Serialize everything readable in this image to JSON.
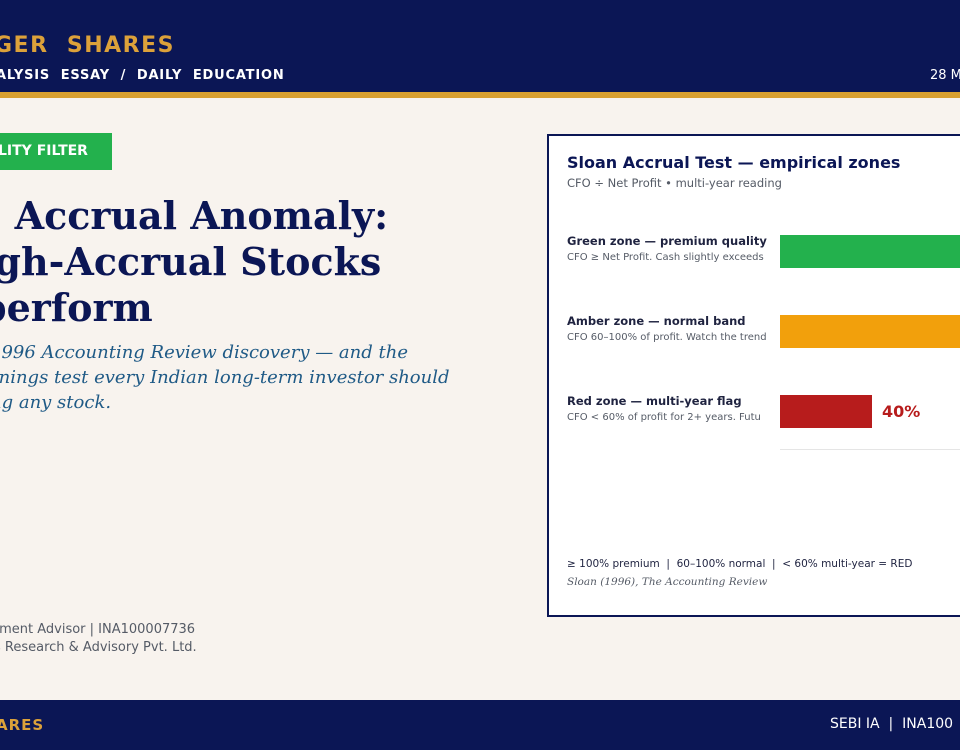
{
  "header": {
    "brand": "GER  SHARES",
    "subnav": "ALYSIS  ESSAY  /  DAILY  EDUCATION",
    "date": "28 M"
  },
  "badge": {
    "label": "LITY FILTER"
  },
  "headline": {
    "lines": [
      "s Accrual Anomaly:",
      "igh-Accrual Stocks",
      "perform"
    ]
  },
  "subhead": {
    "lines": [
      " 1996 Accounting Review discovery — and the",
      "rnings test every Indian long-term investor should",
      "ng any stock."
    ]
  },
  "advisor": {
    "line1": "tment Advisor | INA100007736",
    "line2": "s Research & Advisory Pvt. Ltd."
  },
  "card": {
    "title": "Sloan Accrual Test — empirical zones",
    "subtitle": "CFO ÷ Net Profit  •  multi-year reading",
    "legend": "≥ 100% premium  |  60–100% normal  |  < 60% multi-year = RED",
    "source": "Sloan (1996), The Accounting Review"
  },
  "chart_data": {
    "type": "bar",
    "orientation": "horizontal",
    "categories": [
      "Green zone — premium quality",
      "Amber zone — normal band",
      "Red zone — multi-year flag"
    ],
    "descriptions": [
      "CFO ≥ Net Profit. Cash slightly exceeds",
      "CFO 60–100% of profit. Watch the trend",
      "CFO < 60% of profit for 2+ years. Futu"
    ],
    "values": [
      100,
      100,
      40
    ],
    "value_labels": [
      "",
      "",
      "40%"
    ],
    "colors": [
      "#23b14d",
      "#f2a00c",
      "#b71c1c"
    ],
    "xlim": [
      0,
      100
    ],
    "grid": false
  },
  "footer": {
    "brand": "ARES",
    "sebi": "SEBI IA  |  INA100"
  }
}
